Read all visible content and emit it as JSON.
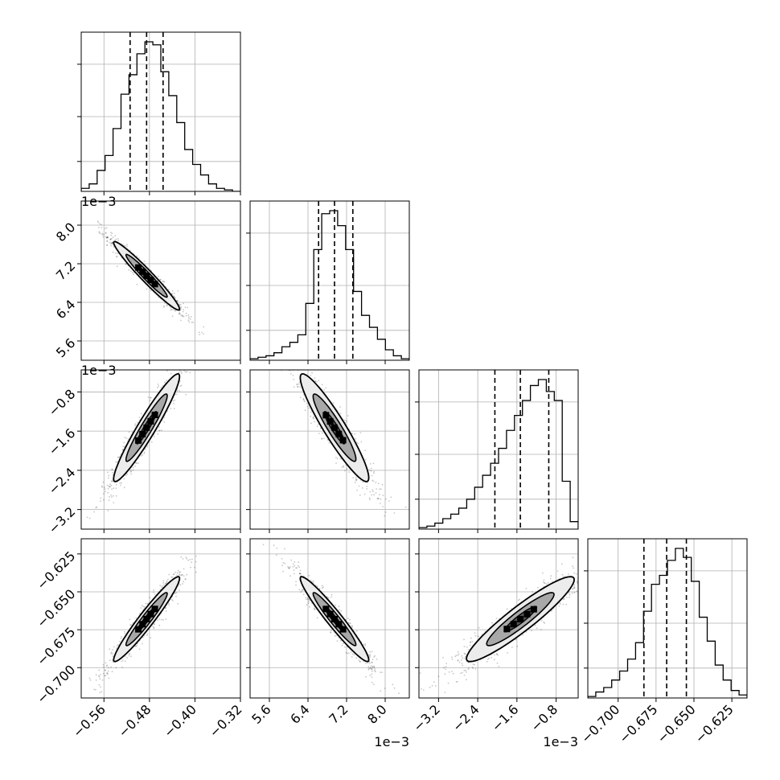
{
  "chart_data": {
    "type": "corner",
    "description_free": true,
    "grid": true,
    "parameters": [
      {
        "range": [
          -0.6,
          -0.32
        ],
        "ticks": [
          -0.56,
          -0.48,
          -0.4,
          -0.32
        ],
        "tick_labels": [
          "−0.56",
          "−0.48",
          "−0.40",
          "−0.32"
        ],
        "offset_label": "",
        "row_offset_label": "",
        "quantiles": [
          -0.514,
          -0.485,
          -0.456
        ]
      },
      {
        "range": [
          5.2,
          8.5
        ],
        "ticks": [
          5.6,
          6.4,
          7.2,
          8.0
        ],
        "tick_labels": [
          "5.6",
          "6.4",
          "7.2",
          "8.0"
        ],
        "offset_label": "1e−3",
        "row_offset_label": "1e−3",
        "quantiles": [
          6.62,
          6.95,
          7.33
        ]
      },
      {
        "range": [
          -3.6,
          -0.35
        ],
        "ticks": [
          -3.2,
          -2.4,
          -1.6,
          -0.8
        ],
        "tick_labels": [
          "−3.2",
          "−2.4",
          "−1.6",
          "−0.8"
        ],
        "offset_label": "1e−3",
        "row_offset_label": "1e−3",
        "quantiles": [
          -2.05,
          -1.53,
          -0.95
        ]
      },
      {
        "range": [
          -0.72,
          -0.615
        ],
        "ticks": [
          -0.7,
          -0.675,
          -0.65,
          -0.625
        ],
        "tick_labels": [
          "−0.700",
          "−0.675",
          "−0.650",
          "−0.625"
        ],
        "offset_label": "",
        "row_offset_label": "",
        "quantiles": [
          -0.683,
          -0.668,
          -0.655
        ]
      }
    ],
    "histograms": [
      {
        "param": 0,
        "counts": [
          0.02,
          0.05,
          0.14,
          0.24,
          0.42,
          0.65,
          0.78,
          0.92,
          1.0,
          0.98,
          0.8,
          0.64,
          0.46,
          0.28,
          0.18,
          0.11,
          0.05,
          0.02,
          0.01,
          0.0
        ]
      },
      {
        "param": 1,
        "counts": [
          0.01,
          0.02,
          0.03,
          0.05,
          0.09,
          0.12,
          0.17,
          0.38,
          0.74,
          0.98,
          1.0,
          0.9,
          0.74,
          0.46,
          0.3,
          0.22,
          0.14,
          0.07,
          0.03,
          0.01
        ]
      },
      {
        "param": 2,
        "counts": [
          0.01,
          0.02,
          0.04,
          0.07,
          0.1,
          0.14,
          0.2,
          0.28,
          0.36,
          0.44,
          0.54,
          0.66,
          0.76,
          0.86,
          0.96,
          1.0,
          0.92,
          0.86,
          0.32,
          0.05
        ]
      },
      {
        "param": 3,
        "counts": [
          0.01,
          0.04,
          0.07,
          0.12,
          0.18,
          0.26,
          0.37,
          0.58,
          0.76,
          0.82,
          0.92,
          1.0,
          0.94,
          0.78,
          0.54,
          0.38,
          0.22,
          0.12,
          0.05,
          0.02
        ]
      }
    ],
    "pairs": [
      {
        "x": 1,
        "y": 0,
        "rho": -0.97
      },
      {
        "x": 2,
        "y": 0,
        "rho": 0.95
      },
      {
        "x": 2,
        "y": 1,
        "rho": -0.93
      },
      {
        "x": 3,
        "y": 0,
        "rho": 0.96
      },
      {
        "x": 3,
        "y": 1,
        "rho": -0.96
      },
      {
        "x": 3,
        "y": 2,
        "rho": 0.93
      }
    ]
  }
}
